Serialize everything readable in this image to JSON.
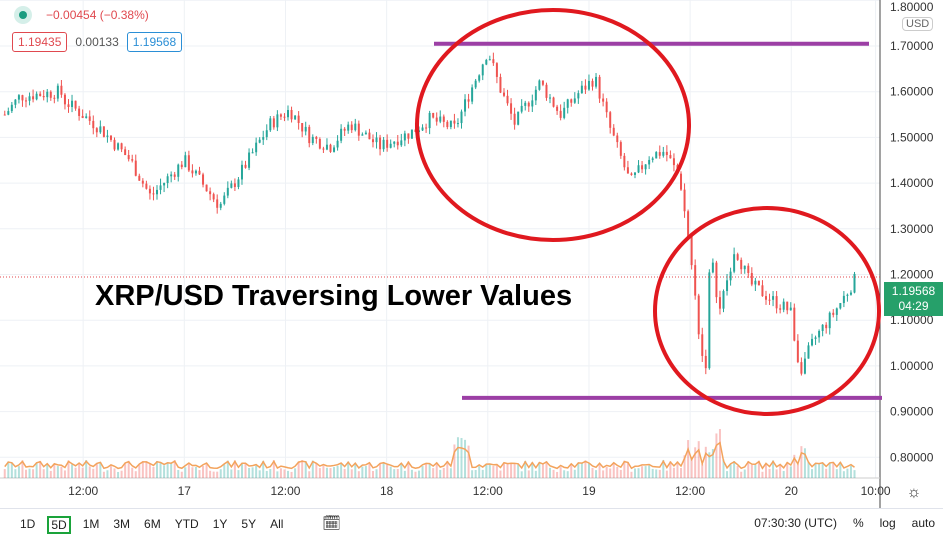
{
  "legend": {
    "change": "−0.00454 (−0.38%)",
    "bid": "1.19435",
    "spread": "0.00133",
    "ask": "1.19568"
  },
  "price_axis": {
    "currency": "USD",
    "current_price": "1.19568",
    "countdown": "04:29"
  },
  "annotation": {
    "title": "XRP/USD Traversing Lower Values"
  },
  "bottom": {
    "ranges": [
      "1D",
      "5D",
      "1M",
      "3M",
      "6M",
      "YTD",
      "1Y",
      "5Y",
      "All"
    ],
    "active_range": "5D",
    "time": "07:30:30 (UTC)",
    "percent": "%",
    "log": "log",
    "auto": "auto"
  },
  "colors": {
    "up": "#26a69a",
    "down": "#ef5350",
    "ellipse": "#e0191f",
    "line": "#9c3fa5"
  },
  "chart_data": {
    "type": "candlestick",
    "title": "XRP/USD",
    "xlabel": "",
    "ylabel": "Price (USD)",
    "ylim": [
      0.75,
      1.8
    ],
    "x_unit": "hours since 16 00:00",
    "x_ticks": [
      {
        "h": 12,
        "label": "12:00"
      },
      {
        "h": 24,
        "label": "17"
      },
      {
        "h": 36,
        "label": "12:00"
      },
      {
        "h": 48,
        "label": "18"
      },
      {
        "h": 60,
        "label": "12:00"
      },
      {
        "h": 72,
        "label": "19"
      },
      {
        "h": 84,
        "label": "12:00"
      },
      {
        "h": 96,
        "label": "20"
      },
      {
        "h": 106,
        "label": "10:00"
      }
    ],
    "y_ticks": [
      "1.80000",
      "1.70000",
      "1.60000",
      "1.50000",
      "1.40000",
      "1.30000",
      "1.20000",
      "1.10000",
      "1.00000",
      "0.90000",
      "0.80000"
    ],
    "price_path": [
      [
        2.7,
        1.55
      ],
      [
        4.5,
        1.59
      ],
      [
        9.3,
        1.6
      ],
      [
        9.8,
        1.58
      ],
      [
        14,
        1.52
      ],
      [
        17.6,
        1.45
      ],
      [
        20,
        1.37
      ],
      [
        24,
        1.45
      ],
      [
        28.2,
        1.35
      ],
      [
        30.6,
        1.42
      ],
      [
        34.2,
        1.53
      ],
      [
        36.5,
        1.56
      ],
      [
        38.9,
        1.5
      ],
      [
        41.3,
        1.48
      ],
      [
        43.7,
        1.53
      ],
      [
        47.2,
        1.48
      ],
      [
        50.8,
        1.51
      ],
      [
        53.1,
        1.54
      ],
      [
        56.1,
        1.52
      ],
      [
        57.9,
        1.6
      ],
      [
        60,
        1.69
      ],
      [
        61.4,
        1.61
      ],
      [
        63.2,
        1.53
      ],
      [
        66.2,
        1.62
      ],
      [
        68.6,
        1.55
      ],
      [
        70.9,
        1.6
      ],
      [
        72.7,
        1.63
      ],
      [
        74.5,
        1.52
      ],
      [
        76.9,
        1.4
      ],
      [
        79.2,
        1.46
      ],
      [
        81,
        1.47
      ],
      [
        82.8,
        1.41
      ],
      [
        84,
        1.25
      ],
      [
        85.2,
        1.05
      ],
      [
        85.8,
        0.98
      ],
      [
        86.4,
        1.25
      ],
      [
        87.5,
        1.12
      ],
      [
        89.3,
        1.26
      ],
      [
        91.1,
        1.18
      ],
      [
        94.1,
        1.14
      ],
      [
        95.9,
        1.12
      ],
      [
        97,
        0.99
      ],
      [
        98.8,
        1.06
      ],
      [
        101.2,
        1.12
      ],
      [
        103.6,
        1.19
      ]
    ],
    "resistance": 1.705,
    "support": 0.93
  }
}
